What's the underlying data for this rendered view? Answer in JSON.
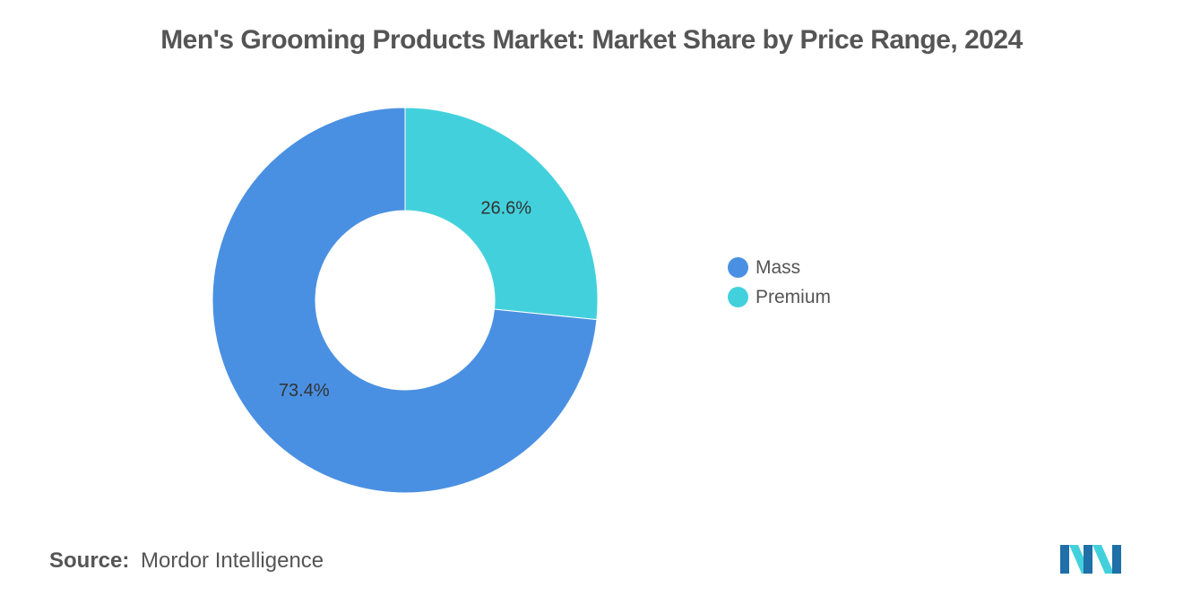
{
  "chart_data": {
    "type": "pie",
    "donut": true,
    "title": "Men's Grooming Products Market: Market Share by Price Range, 2024",
    "categories": [
      "Premium",
      "Mass"
    ],
    "values": [
      26.6,
      73.4
    ],
    "value_labels": [
      "26.6%",
      "73.4%"
    ],
    "colors": [
      "#42d1dc",
      "#4a90e2"
    ],
    "legend": {
      "placement": "right",
      "entries": [
        {
          "label": "Mass",
          "color": "#4a90e2"
        },
        {
          "label": "Premium",
          "color": "#42d1dc"
        }
      ]
    }
  },
  "footer": {
    "source_label": "Source:",
    "source_value": "Mordor Intelligence"
  },
  "logo": {
    "icon": "mordor-intelligence-logo-icon",
    "colors": [
      "#1f6fa8",
      "#42d1dc"
    ]
  }
}
